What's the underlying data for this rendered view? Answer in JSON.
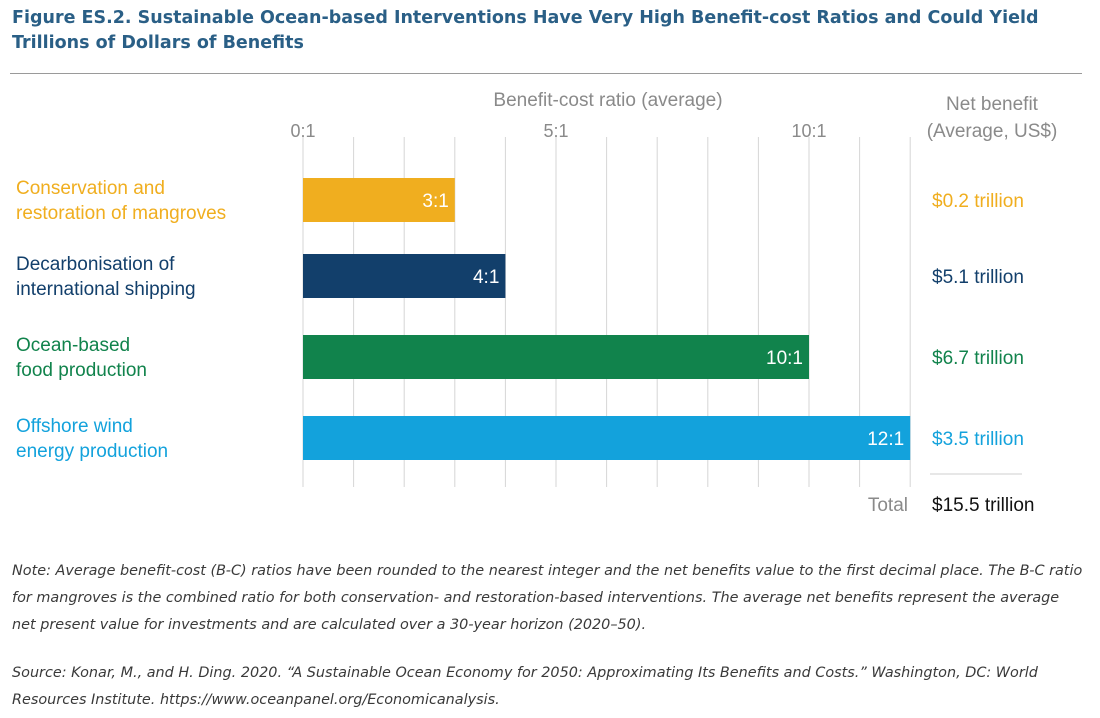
{
  "figure": {
    "title": "Figure ES.2. Sustainable Ocean-based Interventions Have Very High Benefit-cost Ratios and Could Yield Trillions of Dollars of Benefits",
    "note": "Note: Average benefit-cost (B-C) ratios have been rounded to the nearest integer and the net benefits value to the first decimal place. The B-C ratio for mangroves is the combined ratio for both conservation- and restoration-based interventions. The average net benefits represent the average net present value for investments and are calculated over a 30-year horizon (2020–50).",
    "source": "Source: Konar, M., and H. Ding. 2020. “A Sustainable Ocean Economy for 2050: Approximating Its Benefits and Costs.” Washington, DC: World Resources Institute. https://www.oceanpanel.org/Economicanalysis."
  },
  "chart_data": {
    "type": "bar",
    "orientation": "horizontal",
    "xlabel": "Benefit-cost ratio (average)",
    "xlim": [
      0,
      12
    ],
    "ticks": [
      {
        "value": 0,
        "label": "0:1"
      },
      {
        "value": 5,
        "label": "5:1"
      },
      {
        "value": 10,
        "label": "10:1"
      }
    ],
    "grid": true,
    "categories": [
      "Conservation and restoration of mangroves",
      "Decarbonisation of international shipping",
      "Ocean-based food production",
      "Offshore wind energy production"
    ],
    "category_lines": [
      [
        "Conservation and",
        "restoration of mangroves"
      ],
      [
        "Decarbonisation of",
        "international shipping"
      ],
      [
        "Ocean-based",
        "food production"
      ],
      [
        "Offshore wind",
        "energy production"
      ]
    ],
    "values": [
      3,
      4,
      10,
      12
    ],
    "data_labels": [
      "3:1",
      "4:1",
      "10:1",
      "12:1"
    ],
    "colors": [
      "#f0ae1f",
      "#123f6b",
      "#11834c",
      "#13a2dc"
    ],
    "net_benefit": {
      "header": [
        "Net benefit",
        "(Average, US$)"
      ],
      "values": [
        "$0.2 trillion",
        "$5.1 trillion",
        "$6.7 trillion",
        "$3.5 trillion"
      ],
      "total_label": "Total",
      "total_value": "$15.5 trillion"
    }
  }
}
